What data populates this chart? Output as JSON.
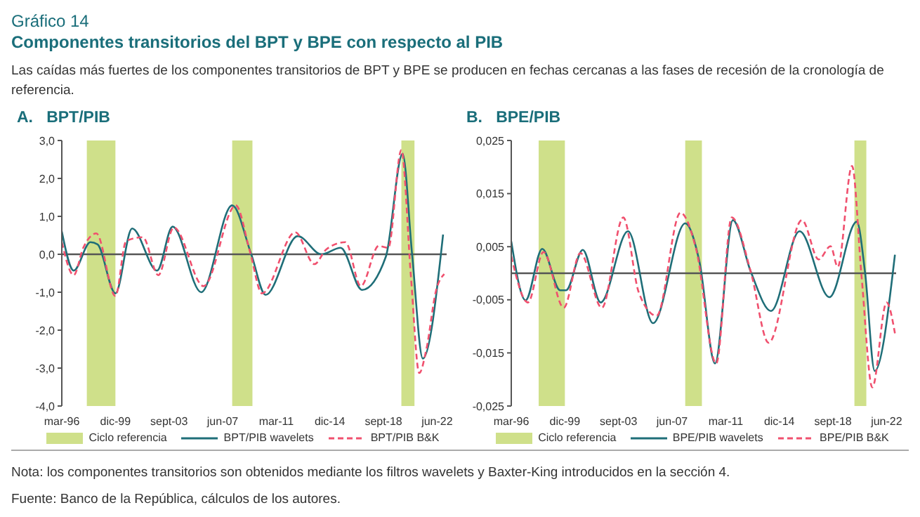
{
  "chart_data": [
    {
      "type": "line",
      "title": "A.   BPT/PIB",
      "annotations": [
        "Gráfico 14",
        "Componentes transitorios del BPT y BPE con respecto al PIB",
        "Las caídas más fuertes de los componentes transitorios de BPT y BPE se producen en fechas cercanas a las fases de recesión de la cronología de referencia."
      ],
      "series": [
        {
          "name": "BPT/PIB wavelets",
          "color": "#1f6e78",
          "line_style": "solid",
          "x": [
            "1996-03",
            "1997-01",
            "1998-03",
            "1998-09",
            "1999-12",
            "2001-02",
            "2002-11",
            "2003-12",
            "2005-12",
            "2008-02",
            "2009-06",
            "2010-06",
            "2012-09",
            "2014-05",
            "2015-09",
            "2017-03",
            "2018-11",
            "2020-01",
            "2020-09",
            "2021-06",
            "2022-11"
          ],
          "values": [
            0.6,
            -0.43,
            0.32,
            0.26,
            -1.03,
            0.68,
            -0.43,
            0.73,
            -1.0,
            1.29,
            0,
            -1.07,
            0.48,
            0,
            0.17,
            -0.94,
            -0.06,
            2.65,
            0,
            -2.75,
            0.52
          ]
        },
        {
          "name": "BPT/PIB B&K",
          "color": "#f0506e",
          "line_style": "dashed",
          "x": [
            "1996-03",
            "1997-01",
            "1997-09",
            "1998-08",
            "1999-12",
            "2000-09",
            "2001-11",
            "2002-12",
            "2004-01",
            "2006-02",
            "2008-05",
            "2009-05",
            "2010-03",
            "2012-07",
            "2013-11",
            "2014-09",
            "2016-01",
            "2017-02",
            "2018-05",
            "2019-01",
            "2019-12",
            "2020-08",
            "2021-03",
            "2021-09",
            "2022-05",
            "2022-12"
          ],
          "values": [
            0.32,
            -0.55,
            0.17,
            0.55,
            -1.1,
            0.35,
            0.45,
            -0.55,
            0.71,
            -0.84,
            1.29,
            0.06,
            -1.03,
            0.58,
            -0.26,
            0.13,
            0.32,
            -0.84,
            0.22,
            0.17,
            2.75,
            -0.58,
            -3.13,
            -2.5,
            -0.97,
            -0.52
          ]
        }
      ],
      "marker": "none",
      "grid": false,
      "legend": "bottom",
      "xlim": [
        "1996-03",
        "2023-02"
      ],
      "xticks": [
        {
          "value": "1996-03",
          "label": "mar-96"
        },
        {
          "value": "1999-12",
          "label": "dic-99"
        },
        {
          "value": "2003-09",
          "label": "sept-03"
        },
        {
          "value": "2007-06",
          "label": "jun-07"
        },
        {
          "value": "2011-03",
          "label": "mar-11"
        },
        {
          "value": "2014-12",
          "label": "dic-14"
        },
        {
          "value": "2018-09",
          "label": "sept-18"
        },
        {
          "value": "2022-06",
          "label": "jun-22"
        }
      ],
      "ylim": [
        -4,
        3
      ],
      "yticks": [
        {
          "value": -4,
          "label": "-4,0"
        },
        {
          "value": -3,
          "label": "-3,0"
        },
        {
          "value": -2,
          "label": "-2,0"
        },
        {
          "value": -1,
          "label": "-1,0"
        },
        {
          "value": 0,
          "label": "0,0"
        },
        {
          "value": 1,
          "label": "1,0"
        },
        {
          "value": 2,
          "label": "2,0"
        },
        {
          "value": 3,
          "label": "3,0"
        }
      ],
      "ref_lines": [
        {
          "axis": "y",
          "value": 0,
          "color": "#555555"
        }
      ],
      "bands": [
        {
          "axis": "x",
          "from": "1997-12",
          "to": "1999-12",
          "label": "Ciclo referencia",
          "color": "#cfe08a"
        },
        {
          "axis": "x",
          "from": "2008-02",
          "to": "2009-07",
          "color": "#cfe08a"
        },
        {
          "axis": "x",
          "from": "2019-12",
          "to": "2020-11",
          "color": "#cfe08a"
        }
      ]
    },
    {
      "type": "line",
      "title": "B.   BPE/PIB",
      "annotations": [
        "Nota: los componentes transitorios son obtenidos mediante los filtros wavelets y Baxter-King introducidos en la sección 4.",
        "Fuente: Banco de la República, cálculos de los autores."
      ],
      "series": [
        {
          "name": "BPE/PIB wavelets",
          "color": "#1f6e78",
          "line_style": "solid",
          "x": [
            "1996-03",
            "1997-03",
            "1998-05",
            "1999-08",
            "2000-01",
            "2001-03",
            "2002-06",
            "2004-05",
            "2006-02",
            "2008-05",
            "2009-05",
            "2010-06",
            "2011-09",
            "2012-12",
            "2014-05",
            "2016-05",
            "2018-06",
            "2020-05",
            "2020-12",
            "2021-08",
            "2023-01"
          ],
          "values": [
            0.006,
            -0.0051,
            0.0046,
            -0.0032,
            -0.0032,
            0.0044,
            -0.0055,
            0.0079,
            -0.0094,
            0.0094,
            0.0021,
            -0.017,
            0.01,
            0.0003,
            -0.0071,
            0.0079,
            -0.0045,
            0.0097,
            0,
            -0.0184,
            0.0035
          ]
        },
        {
          "name": "BPE/PIB B&K",
          "color": "#f0506e",
          "line_style": "dashed",
          "x": [
            "1996-03",
            "1997-05",
            "1998-06",
            "1999-11",
            "2001-01",
            "2002-07",
            "2004-01",
            "2005-02",
            "2006-05",
            "2008-01",
            "2009-02",
            "2010-07",
            "2011-08",
            "2012-12",
            "2014-03",
            "2016-07",
            "2017-09",
            "2018-07",
            "2019-01",
            "2020-01",
            "2020-09",
            "2021-06",
            "2022-06",
            "2023-01"
          ],
          "values": [
            0.0032,
            -0.0055,
            0.004,
            -0.0065,
            0.0038,
            -0.0065,
            0.0105,
            -0.0036,
            -0.008,
            0.0114,
            0.0047,
            -0.017,
            0.0105,
            0.0003,
            -0.0131,
            0.01,
            0.0026,
            0.0051,
            0.0012,
            0.0202,
            -0.0006,
            -0.0215,
            -0.0055,
            -0.0113
          ]
        }
      ],
      "marker": "none",
      "grid": false,
      "legend": "bottom",
      "xlim": [
        "1996-03",
        "2023-02"
      ],
      "xticks": [
        {
          "value": "1996-03",
          "label": "mar-96"
        },
        {
          "value": "1999-12",
          "label": "dic-99"
        },
        {
          "value": "2003-09",
          "label": "sept-03"
        },
        {
          "value": "2007-06",
          "label": "jun-07"
        },
        {
          "value": "2011-03",
          "label": "mar-11"
        },
        {
          "value": "2014-12",
          "label": "dic-14"
        },
        {
          "value": "2018-09",
          "label": "sept-18"
        },
        {
          "value": "2022-06",
          "label": "jun-22"
        }
      ],
      "ylim": [
        -0.025,
        0.025
      ],
      "yticks": [
        {
          "value": -0.025,
          "label": "-0,025"
        },
        {
          "value": -0.015,
          "label": "-0,015"
        },
        {
          "value": -0.005,
          "label": "-0,005"
        },
        {
          "value": 0.005,
          "label": "0,005"
        },
        {
          "value": 0.015,
          "label": "0,015"
        },
        {
          "value": 0.025,
          "label": "0,025"
        }
      ],
      "ref_lines": [
        {
          "axis": "y",
          "value": 0,
          "color": "#555555"
        }
      ],
      "bands": [
        {
          "axis": "x",
          "from": "1998-02",
          "to": "1999-12",
          "label": "Ciclo referencia",
          "color": "#cfe08a"
        },
        {
          "axis": "x",
          "from": "2008-05",
          "to": "2009-07",
          "color": "#cfe08a"
        },
        {
          "axis": "x",
          "from": "2020-03",
          "to": "2021-01",
          "color": "#cfe08a"
        }
      ]
    }
  ]
}
